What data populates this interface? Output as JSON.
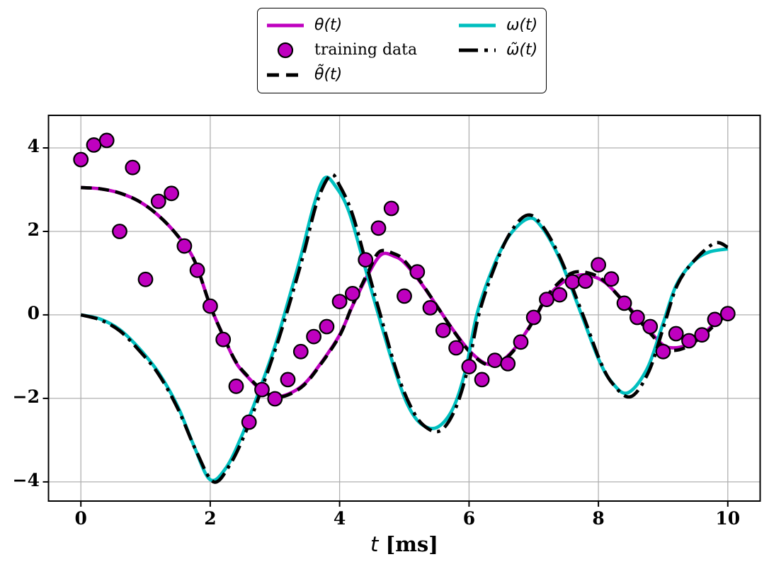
{
  "figure": {
    "background": "#ffffff",
    "grid_color": "#b0b0b0",
    "spine_color": "#000000",
    "tick_color": "#000000"
  },
  "chart_data": {
    "type": "line",
    "title": "",
    "xlabel": "t [ms]",
    "xlabel_symbol": "t",
    "xlabel_unit": " [ms]",
    "ylabel": "",
    "xlim": [
      -0.5,
      10.5
    ],
    "ylim": [
      -4.46,
      4.78
    ],
    "xticks": [
      0,
      2,
      4,
      6,
      8,
      10
    ],
    "yticks": [
      -4,
      -2,
      0,
      2,
      4
    ],
    "grid": true,
    "legend_position": "upper center, 2 columns, outside axes top",
    "series": [
      {
        "name": "θ(t)",
        "type": "line",
        "style": "solid",
        "color": "#BF00BF",
        "zorder": 1,
        "points": [
          [
            0,
            3.05
          ],
          [
            0.3,
            3.02
          ],
          [
            0.6,
            2.92
          ],
          [
            0.9,
            2.72
          ],
          [
            1.2,
            2.38
          ],
          [
            1.5,
            1.89
          ],
          [
            1.75,
            1.32
          ],
          [
            2.0,
            0.22
          ],
          [
            2.2,
            -0.5
          ],
          [
            2.4,
            -1.15
          ],
          [
            2.6,
            -1.52
          ],
          [
            2.8,
            -1.82
          ],
          [
            3.0,
            -1.95
          ],
          [
            3.2,
            -1.9
          ],
          [
            3.45,
            -1.66
          ],
          [
            3.7,
            -1.18
          ],
          [
            4.0,
            -0.48
          ],
          [
            4.2,
            0.22
          ],
          [
            4.45,
            1.0
          ],
          [
            4.65,
            1.45
          ],
          [
            4.85,
            1.4
          ],
          [
            5.0,
            1.25
          ],
          [
            5.25,
            0.78
          ],
          [
            5.5,
            0.22
          ],
          [
            5.75,
            -0.35
          ],
          [
            6.0,
            -0.85
          ],
          [
            6.25,
            -1.16
          ],
          [
            6.45,
            -1.15
          ],
          [
            6.7,
            -0.82
          ],
          [
            7.0,
            -0.12
          ],
          [
            7.2,
            0.4
          ],
          [
            7.45,
            0.78
          ],
          [
            7.7,
            0.95
          ],
          [
            7.9,
            0.93
          ],
          [
            8.1,
            0.78
          ],
          [
            8.3,
            0.48
          ],
          [
            8.55,
            0.05
          ],
          [
            8.8,
            -0.4
          ],
          [
            9.0,
            -0.72
          ],
          [
            9.15,
            -0.79
          ],
          [
            9.35,
            -0.73
          ],
          [
            9.6,
            -0.48
          ],
          [
            9.8,
            -0.2
          ],
          [
            10,
            0.05
          ]
        ]
      },
      {
        "name": "training data",
        "type": "scatter",
        "color": "#BF00BF",
        "edge_color": "#000000",
        "marker_radius": 9.8,
        "zorder": 5,
        "points": [
          [
            0,
            3.72
          ],
          [
            0.2,
            4.07
          ],
          [
            0.4,
            4.18
          ],
          [
            0.6,
            2.0
          ],
          [
            0.8,
            3.53
          ],
          [
            1.0,
            0.85
          ],
          [
            1.2,
            2.72
          ],
          [
            1.4,
            2.91
          ],
          [
            1.6,
            1.65
          ],
          [
            1.8,
            1.07
          ],
          [
            2.0,
            0.21
          ],
          [
            2.2,
            -0.59
          ],
          [
            2.4,
            -1.71
          ],
          [
            2.6,
            -2.57
          ],
          [
            2.8,
            -1.79
          ],
          [
            3.0,
            -2.01
          ],
          [
            3.2,
            -1.55
          ],
          [
            3.4,
            -0.88
          ],
          [
            3.6,
            -0.52
          ],
          [
            3.8,
            -0.28
          ],
          [
            4.0,
            0.32
          ],
          [
            4.2,
            0.51
          ],
          [
            4.4,
            1.32
          ],
          [
            4.6,
            2.08
          ],
          [
            4.8,
            2.55
          ],
          [
            5.0,
            0.45
          ],
          [
            5.2,
            1.03
          ],
          [
            5.4,
            0.17
          ],
          [
            5.6,
            -0.37
          ],
          [
            5.8,
            -0.79
          ],
          [
            6.0,
            -1.24
          ],
          [
            6.2,
            -1.55
          ],
          [
            6.4,
            -1.09
          ],
          [
            6.6,
            -1.17
          ],
          [
            6.8,
            -0.65
          ],
          [
            7.0,
            -0.06
          ],
          [
            7.2,
            0.37
          ],
          [
            7.4,
            0.48
          ],
          [
            7.6,
            0.79
          ],
          [
            7.8,
            0.81
          ],
          [
            8.0,
            1.2
          ],
          [
            8.2,
            0.86
          ],
          [
            8.4,
            0.28
          ],
          [
            8.6,
            -0.06
          ],
          [
            8.8,
            -0.28
          ],
          [
            9.0,
            -0.88
          ],
          [
            9.2,
            -0.45
          ],
          [
            9.4,
            -0.62
          ],
          [
            9.6,
            -0.48
          ],
          [
            9.8,
            -0.11
          ],
          [
            10,
            0.03
          ]
        ]
      },
      {
        "name": "θ̃(t)",
        "type": "line",
        "style": "dashed",
        "color": "#000000",
        "zorder": 2,
        "points": [
          [
            0,
            3.05
          ],
          [
            0.3,
            3.02
          ],
          [
            0.6,
            2.92
          ],
          [
            0.9,
            2.72
          ],
          [
            1.2,
            2.38
          ],
          [
            1.5,
            1.89
          ],
          [
            1.75,
            1.32
          ],
          [
            2.0,
            0.22
          ],
          [
            2.2,
            -0.5
          ],
          [
            2.4,
            -1.13
          ],
          [
            2.6,
            -1.5
          ],
          [
            2.8,
            -1.8
          ],
          [
            3.0,
            -1.96
          ],
          [
            3.2,
            -1.92
          ],
          [
            3.45,
            -1.68
          ],
          [
            3.7,
            -1.2
          ],
          [
            4.0,
            -0.5
          ],
          [
            4.2,
            0.24
          ],
          [
            4.45,
            1.06
          ],
          [
            4.62,
            1.52
          ],
          [
            4.85,
            1.46
          ],
          [
            5.0,
            1.3
          ],
          [
            5.25,
            0.8
          ],
          [
            5.5,
            0.22
          ],
          [
            5.75,
            -0.36
          ],
          [
            6.0,
            -0.87
          ],
          [
            6.25,
            -1.18
          ],
          [
            6.45,
            -1.17
          ],
          [
            6.7,
            -0.84
          ],
          [
            7.0,
            -0.13
          ],
          [
            7.2,
            0.44
          ],
          [
            7.45,
            0.86
          ],
          [
            7.65,
            1.03
          ],
          [
            7.9,
            0.98
          ],
          [
            8.1,
            0.8
          ],
          [
            8.3,
            0.47
          ],
          [
            8.55,
            0.02
          ],
          [
            8.8,
            -0.44
          ],
          [
            9.0,
            -0.76
          ],
          [
            9.15,
            -0.85
          ],
          [
            9.35,
            -0.78
          ],
          [
            9.6,
            -0.52
          ],
          [
            9.8,
            -0.24
          ],
          [
            10,
            0.02
          ]
        ]
      },
      {
        "name": "ω(t)",
        "type": "line",
        "style": "solid",
        "color": "#00BFBF",
        "zorder": 3,
        "points": [
          [
            0,
            0
          ],
          [
            0.3,
            -0.1
          ],
          [
            0.6,
            -0.35
          ],
          [
            0.9,
            -0.8
          ],
          [
            1.2,
            -1.38
          ],
          [
            1.5,
            -2.2
          ],
          [
            1.75,
            -3.15
          ],
          [
            2.0,
            -3.95
          ],
          [
            2.25,
            -3.65
          ],
          [
            2.5,
            -2.85
          ],
          [
            2.75,
            -1.85
          ],
          [
            3.0,
            -0.75
          ],
          [
            3.2,
            0.3
          ],
          [
            3.4,
            1.4
          ],
          [
            3.6,
            2.62
          ],
          [
            3.77,
            3.28
          ],
          [
            3.95,
            3.05
          ],
          [
            4.15,
            2.45
          ],
          [
            4.4,
            1.1
          ],
          [
            4.6,
            0
          ],
          [
            4.85,
            -1.3
          ],
          [
            5.05,
            -2.15
          ],
          [
            5.25,
            -2.6
          ],
          [
            5.5,
            -2.7
          ],
          [
            5.75,
            -2.25
          ],
          [
            5.95,
            -1.3
          ],
          [
            6.12,
            0
          ],
          [
            6.35,
            1.05
          ],
          [
            6.6,
            1.85
          ],
          [
            6.9,
            2.3
          ],
          [
            7.1,
            2.15
          ],
          [
            7.4,
            1.35
          ],
          [
            7.74,
            0
          ],
          [
            8.0,
            -1.05
          ],
          [
            8.2,
            -1.6
          ],
          [
            8.45,
            -1.87
          ],
          [
            8.75,
            -1.3
          ],
          [
            9.0,
            -0.2
          ],
          [
            9.2,
            0.7
          ],
          [
            9.45,
            1.25
          ],
          [
            9.7,
            1.5
          ],
          [
            10,
            1.58
          ]
        ]
      },
      {
        "name": "ω̃(t)",
        "type": "line",
        "style": "dashdot",
        "color": "#000000",
        "zorder": 4,
        "points": [
          [
            0,
            0
          ],
          [
            0.3,
            -0.12
          ],
          [
            0.6,
            -0.38
          ],
          [
            0.9,
            -0.85
          ],
          [
            1.2,
            -1.42
          ],
          [
            1.5,
            -2.25
          ],
          [
            1.78,
            -3.25
          ],
          [
            2.05,
            -4.0
          ],
          [
            2.3,
            -3.6
          ],
          [
            2.55,
            -2.8
          ],
          [
            2.8,
            -1.75
          ],
          [
            3.05,
            -0.62
          ],
          [
            3.25,
            0.4
          ],
          [
            3.45,
            1.5
          ],
          [
            3.65,
            2.7
          ],
          [
            3.86,
            3.35
          ],
          [
            4.0,
            3.1
          ],
          [
            4.2,
            2.4
          ],
          [
            4.45,
            1.0
          ],
          [
            4.63,
            0
          ],
          [
            4.88,
            -1.35
          ],
          [
            5.1,
            -2.2
          ],
          [
            5.3,
            -2.65
          ],
          [
            5.55,
            -2.78
          ],
          [
            5.78,
            -2.28
          ],
          [
            5.98,
            -1.3
          ],
          [
            6.15,
            0
          ],
          [
            6.38,
            1.08
          ],
          [
            6.62,
            1.92
          ],
          [
            6.88,
            2.38
          ],
          [
            7.1,
            2.2
          ],
          [
            7.4,
            1.4
          ],
          [
            7.76,
            0
          ],
          [
            8.02,
            -1.08
          ],
          [
            8.22,
            -1.65
          ],
          [
            8.5,
            -1.96
          ],
          [
            8.78,
            -1.35
          ],
          [
            9.02,
            -0.22
          ],
          [
            9.22,
            0.72
          ],
          [
            9.48,
            1.3
          ],
          [
            9.8,
            1.72
          ],
          [
            10,
            1.62
          ]
        ]
      }
    ],
    "legend": {
      "columns": [
        [
          0,
          1,
          2
        ],
        [
          3,
          4
        ]
      ]
    }
  }
}
